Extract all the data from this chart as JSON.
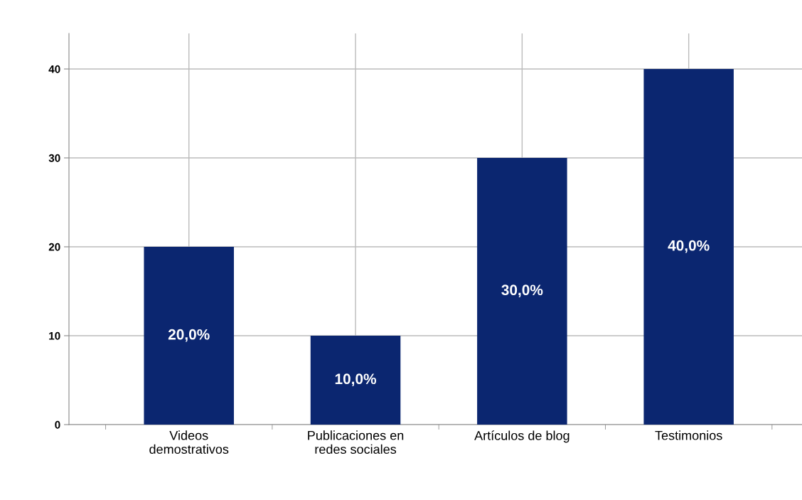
{
  "chart_data": {
    "type": "bar",
    "categories": [
      "Videos\ndemostrativos",
      "Publicaciones en\nredes sociales",
      "Artículos de blog",
      "Testimonios"
    ],
    "values": [
      20,
      10,
      30,
      40
    ],
    "value_labels": [
      "20,0%",
      "10,0%",
      "30,0%",
      "40,0%"
    ],
    "color": "#0b2670",
    "ylim": [
      0,
      44
    ],
    "yticks": [
      0,
      10,
      20,
      30,
      40
    ],
    "grid": true
  }
}
